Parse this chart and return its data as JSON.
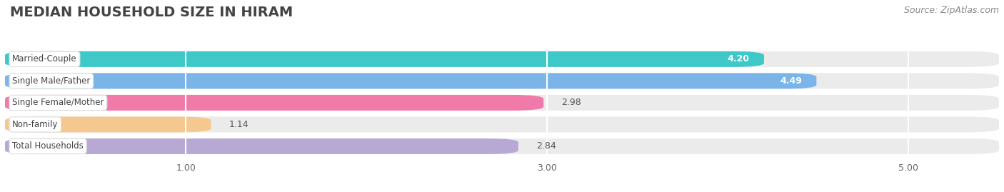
{
  "title": "MEDIAN HOUSEHOLD SIZE IN HIRAM",
  "source": "Source: ZipAtlas.com",
  "categories": [
    "Married-Couple",
    "Single Male/Father",
    "Single Female/Mother",
    "Non-family",
    "Total Households"
  ],
  "values": [
    4.2,
    4.49,
    2.98,
    1.14,
    2.84
  ],
  "bar_colors": [
    "#3ec8c8",
    "#7ab4e8",
    "#f07aaa",
    "#f5c890",
    "#b8a8d4"
  ],
  "xlim": [
    0.0,
    5.5
  ],
  "xstart": 0.0,
  "xend": 5.5,
  "xticks": [
    1.0,
    3.0,
    5.0
  ],
  "background_color": "#ffffff",
  "bar_bg_color": "#ebebeb",
  "title_fontsize": 14,
  "source_fontsize": 9,
  "value_threshold": 3.5
}
